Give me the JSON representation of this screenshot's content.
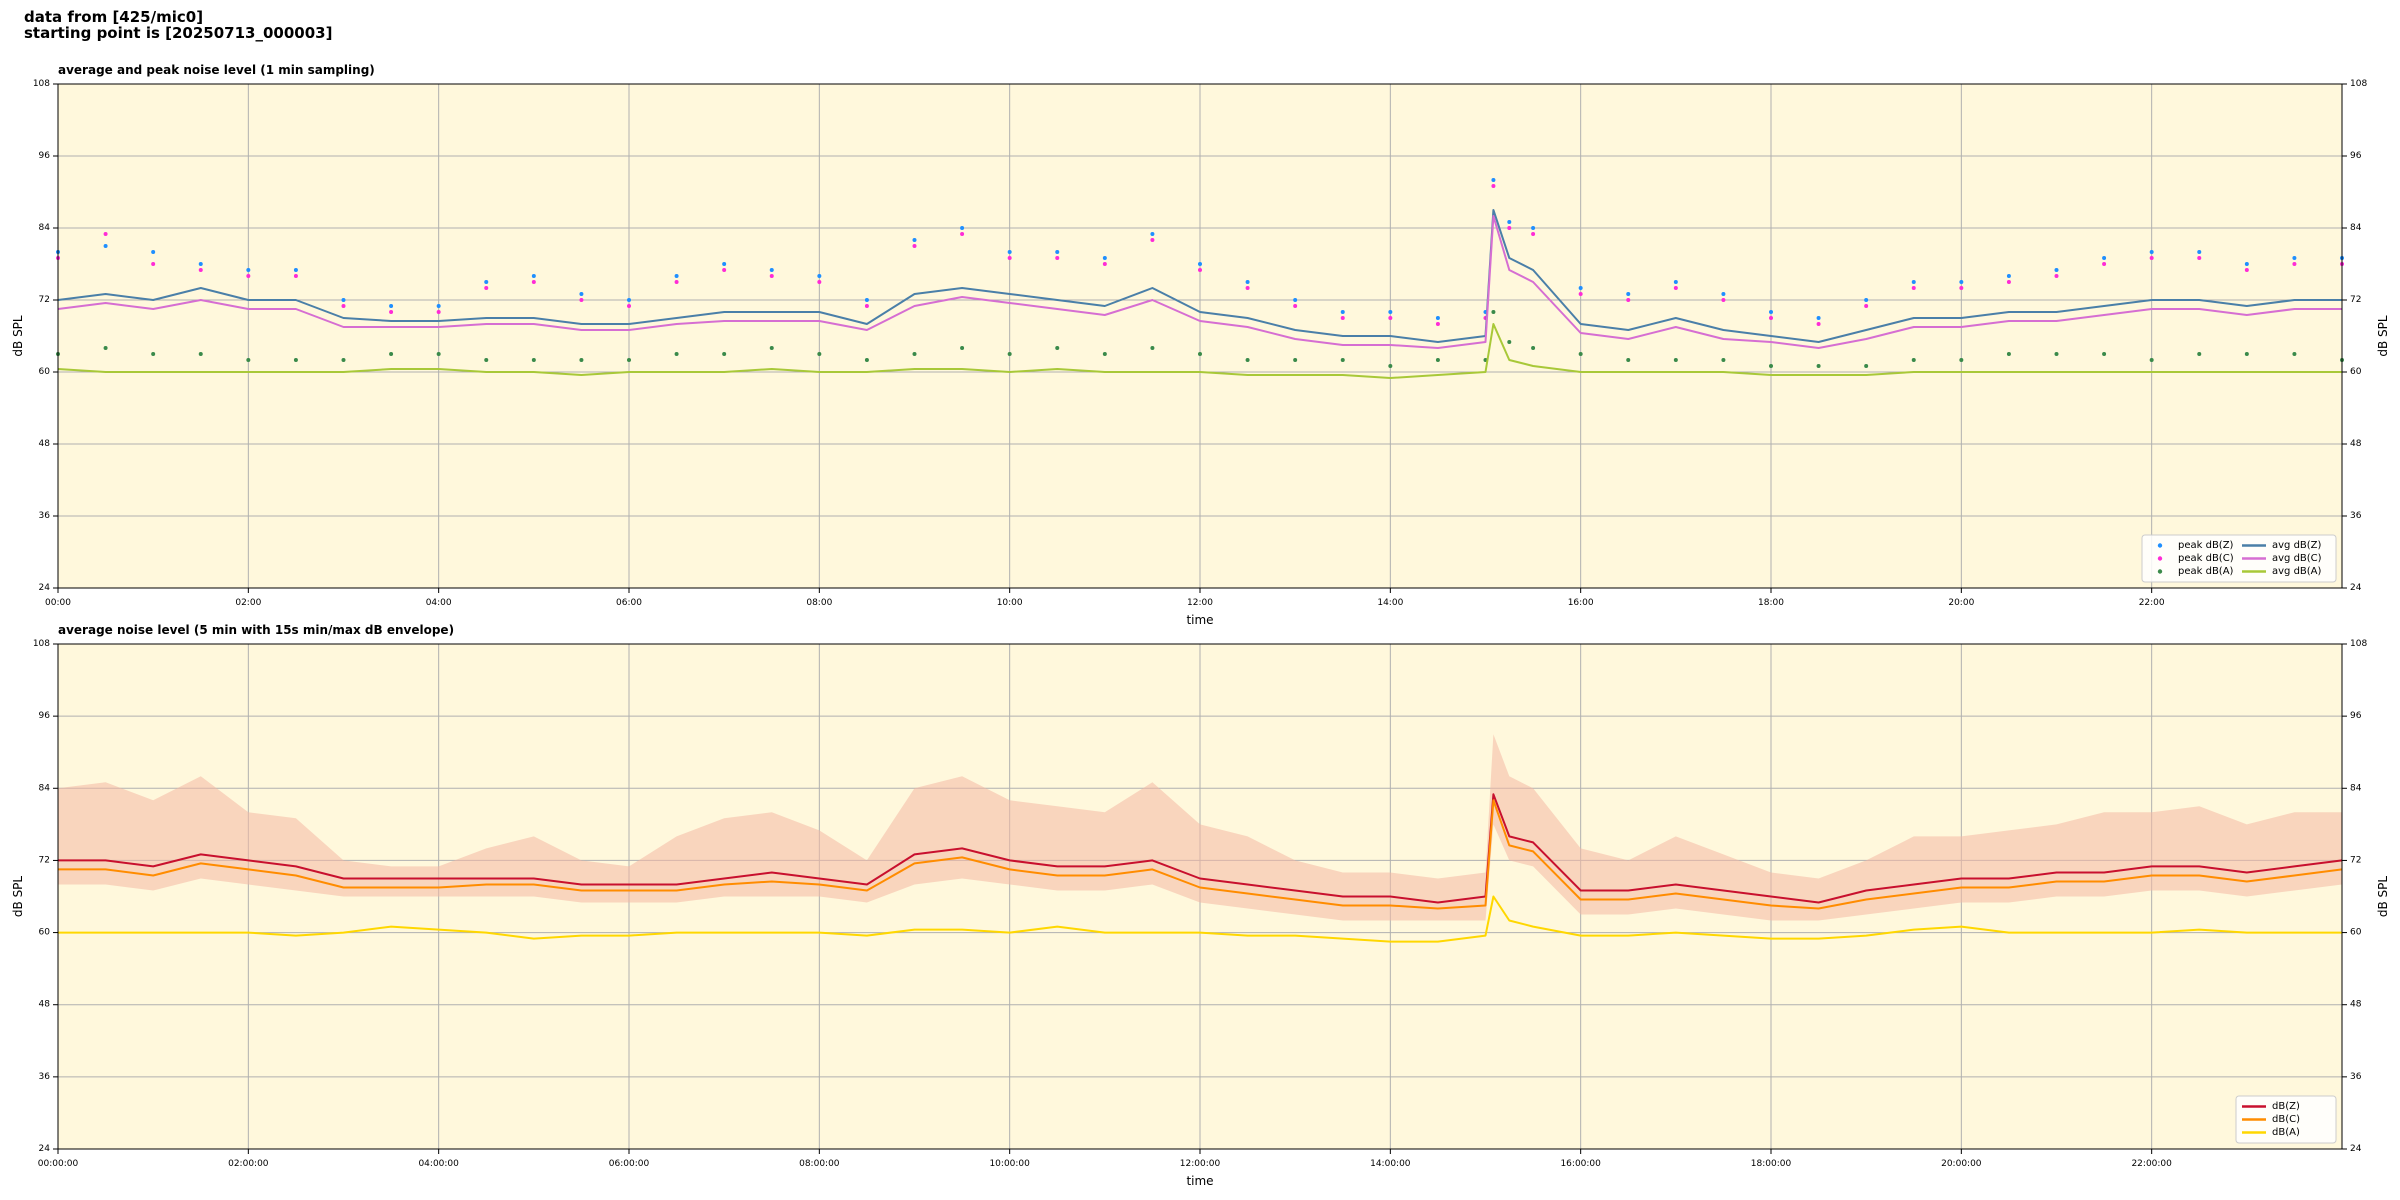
{
  "page_title": [
    "data from [425/mic0]",
    "starting point is [20250713_000003]"
  ],
  "chart_data": [
    {
      "type": "line",
      "title": "average and peak noise level (1 min sampling)",
      "xlabel": "time",
      "ylabel": "dB SPL",
      "background": "#fff8dc",
      "grid": true,
      "legend": "lower right",
      "legend_ncol": 2,
      "xlim": [
        0,
        1440
      ],
      "ylim": [
        24,
        108
      ],
      "yticks": [
        24,
        36,
        48,
        60,
        72,
        84,
        96,
        108
      ],
      "xticks": [
        {
          "value": 0,
          "label": "00:00"
        },
        {
          "value": 120,
          "label": "02:00"
        },
        {
          "value": 240,
          "label": "04:00"
        },
        {
          "value": 360,
          "label": "06:00"
        },
        {
          "value": 480,
          "label": "08:00"
        },
        {
          "value": 600,
          "label": "10:00"
        },
        {
          "value": 720,
          "label": "12:00"
        },
        {
          "value": 840,
          "label": "14:00"
        },
        {
          "value": 960,
          "label": "16:00"
        },
        {
          "value": 1080,
          "label": "18:00"
        },
        {
          "value": 1200,
          "label": "20:00"
        },
        {
          "value": 1320,
          "label": "22:00"
        }
      ],
      "x": [
        0,
        30,
        60,
        90,
        120,
        150,
        180,
        210,
        240,
        270,
        300,
        330,
        360,
        390,
        420,
        450,
        480,
        510,
        540,
        570,
        600,
        630,
        660,
        690,
        720,
        750,
        780,
        810,
        840,
        870,
        900,
        905,
        915,
        930,
        960,
        990,
        1020,
        1050,
        1080,
        1110,
        1140,
        1170,
        1200,
        1230,
        1260,
        1290,
        1320,
        1350,
        1380,
        1410,
        1440
      ],
      "series": [
        {
          "name": "peak dB(Z)",
          "style": "marker",
          "color": "#1f8fff",
          "values": [
            80,
            81,
            80,
            78,
            77,
            77,
            72,
            71,
            71,
            75,
            76,
            73,
            72,
            76,
            78,
            77,
            76,
            72,
            82,
            84,
            80,
            80,
            79,
            83,
            78,
            75,
            72,
            70,
            70,
            69,
            70,
            92,
            85,
            84,
            74,
            73,
            75,
            73,
            70,
            69,
            72,
            75,
            75,
            76,
            77,
            79,
            80,
            80,
            78,
            79,
            79
          ]
        },
        {
          "name": "peak dB(C)",
          "style": "marker",
          "color": "#ff2bd6",
          "values": [
            79,
            83,
            78,
            77,
            76,
            76,
            71,
            70,
            70,
            74,
            75,
            72,
            71,
            75,
            77,
            76,
            75,
            71,
            81,
            83,
            79,
            79,
            78,
            82,
            77,
            74,
            71,
            69,
            69,
            68,
            69,
            91,
            84,
            83,
            73,
            72,
            74,
            72,
            69,
            68,
            71,
            74,
            74,
            75,
            76,
            78,
            79,
            79,
            77,
            78,
            78
          ]
        },
        {
          "name": "peak dB(A)",
          "style": "marker",
          "color": "#3a8a4a",
          "values": [
            63,
            64,
            63,
            63,
            62,
            62,
            62,
            63,
            63,
            62,
            62,
            62,
            62,
            63,
            63,
            64,
            63,
            62,
            63,
            64,
            63,
            64,
            63,
            64,
            63,
            62,
            62,
            62,
            61,
            62,
            62,
            70,
            65,
            64,
            63,
            62,
            62,
            62,
            61,
            61,
            61,
            62,
            62,
            63,
            63,
            63,
            62,
            63,
            63,
            63,
            62
          ]
        },
        {
          "name": "avg dB(Z)",
          "style": "line",
          "color": "#4a7fa8",
          "values": [
            72,
            73,
            72,
            74,
            72,
            72,
            69,
            68.5,
            68.5,
            69,
            69,
            68,
            68,
            69,
            70,
            70,
            70,
            68,
            73,
            74,
            73,
            72,
            71,
            74,
            70,
            69,
            67,
            66,
            66,
            65,
            66,
            87,
            79,
            77,
            68,
            67,
            69,
            67,
            66,
            65,
            67,
            69,
            69,
            70,
            70,
            71,
            72,
            72,
            71,
            72,
            72
          ]
        },
        {
          "name": "avg dB(C)",
          "style": "line",
          "color": "#d66ed2",
          "values": [
            70.5,
            71.5,
            70.5,
            72,
            70.5,
            70.5,
            67.5,
            67.5,
            67.5,
            68,
            68,
            67,
            67,
            68,
            68.5,
            68.5,
            68.5,
            67,
            71,
            72.5,
            71.5,
            70.5,
            69.5,
            72,
            68.5,
            67.5,
            65.5,
            64.5,
            64.5,
            64,
            65,
            86,
            77,
            75,
            66.5,
            65.5,
            67.5,
            65.5,
            65,
            64,
            65.5,
            67.5,
            67.5,
            68.5,
            68.5,
            69.5,
            70.5,
            70.5,
            69.5,
            70.5,
            70.5
          ]
        },
        {
          "name": "avg dB(A)",
          "style": "line",
          "color": "#a8c838",
          "values": [
            60.5,
            60,
            60,
            60,
            60,
            60,
            60,
            60.5,
            60.5,
            60,
            60,
            59.5,
            60,
            60,
            60,
            60.5,
            60,
            60,
            60.5,
            60.5,
            60,
            60.5,
            60,
            60,
            60,
            59.5,
            59.5,
            59.5,
            59,
            59.5,
            60,
            68,
            62,
            61,
            60,
            60,
            60,
            60,
            59.5,
            59.5,
            59.5,
            60,
            60,
            60,
            60,
            60,
            60,
            60,
            60,
            60,
            60
          ]
        }
      ]
    },
    {
      "type": "line",
      "title": "average noise level (5 min with 15s min/max dB envelope)",
      "xlabel": "time",
      "ylabel": "dB SPL",
      "background": "#fff8dc",
      "grid": true,
      "legend": "lower right",
      "legend_ncol": 1,
      "xlim": [
        0,
        1440
      ],
      "ylim": [
        24,
        108
      ],
      "yticks": [
        24,
        36,
        48,
        60,
        72,
        84,
        96,
        108
      ],
      "xticks": [
        {
          "value": 0,
          "label": "00:00:00"
        },
        {
          "value": 120,
          "label": "02:00:00"
        },
        {
          "value": 240,
          "label": "04:00:00"
        },
        {
          "value": 360,
          "label": "06:00:00"
        },
        {
          "value": 480,
          "label": "08:00:00"
        },
        {
          "value": 600,
          "label": "10:00:00"
        },
        {
          "value": 720,
          "label": "12:00:00"
        },
        {
          "value": 840,
          "label": "14:00:00"
        },
        {
          "value": 960,
          "label": "16:00:00"
        },
        {
          "value": 1080,
          "label": "18:00:00"
        },
        {
          "value": 1200,
          "label": "20:00:00"
        },
        {
          "value": 1320,
          "label": "22:00:00"
        }
      ],
      "x": [
        0,
        30,
        60,
        90,
        120,
        150,
        180,
        210,
        240,
        270,
        300,
        330,
        360,
        390,
        420,
        450,
        480,
        510,
        540,
        570,
        600,
        630,
        660,
        690,
        720,
        750,
        780,
        810,
        840,
        870,
        900,
        905,
        915,
        930,
        960,
        990,
        1020,
        1050,
        1080,
        1110,
        1140,
        1170,
        1200,
        1230,
        1260,
        1290,
        1320,
        1350,
        1380,
        1410,
        1440
      ],
      "band": {
        "color": "#f4b8a4",
        "lower": [
          68,
          68,
          67,
          69,
          68,
          67,
          66,
          66,
          66,
          66,
          66,
          65,
          65,
          65,
          66,
          66,
          66,
          65,
          68,
          69,
          68,
          67,
          67,
          68,
          65,
          64,
          63,
          62,
          62,
          62,
          62,
          78,
          72,
          71,
          63,
          63,
          64,
          63,
          62,
          62,
          63,
          64,
          65,
          65,
          66,
          66,
          67,
          67,
          66,
          67,
          68
        ],
        "upper": [
          84,
          85,
          82,
          86,
          80,
          79,
          72,
          71,
          71,
          74,
          76,
          72,
          71,
          76,
          79,
          80,
          77,
          72,
          84,
          86,
          82,
          81,
          80,
          85,
          78,
          76,
          72,
          70,
          70,
          69,
          70,
          93,
          86,
          84,
          74,
          72,
          76,
          73,
          70,
          69,
          72,
          76,
          76,
          77,
          78,
          80,
          80,
          81,
          78,
          80,
          80
        ]
      },
      "series": [
        {
          "name": "dB(Z)",
          "style": "line",
          "color": "#c8102e",
          "values": [
            72,
            72,
            71,
            73,
            72,
            71,
            69,
            69,
            69,
            69,
            69,
            68,
            68,
            68,
            69,
            70,
            69,
            68,
            73,
            74,
            72,
            71,
            71,
            72,
            69,
            68,
            67,
            66,
            66,
            65,
            66,
            83,
            76,
            75,
            67,
            67,
            68,
            67,
            66,
            65,
            67,
            68,
            69,
            69,
            70,
            70,
            71,
            71,
            70,
            71,
            72
          ]
        },
        {
          "name": "dB(C)",
          "style": "line",
          "color": "#ff8c00",
          "values": [
            70.5,
            70.5,
            69.5,
            71.5,
            70.5,
            69.5,
            67.5,
            67.5,
            67.5,
            68,
            68,
            67,
            67,
            67,
            68,
            68.5,
            68,
            67,
            71.5,
            72.5,
            70.5,
            69.5,
            69.5,
            70.5,
            67.5,
            66.5,
            65.5,
            64.5,
            64.5,
            64,
            64.5,
            82,
            74.5,
            73.5,
            65.5,
            65.5,
            66.5,
            65.5,
            64.5,
            64,
            65.5,
            66.5,
            67.5,
            67.5,
            68.5,
            68.5,
            69.5,
            69.5,
            68.5,
            69.5,
            70.5
          ]
        },
        {
          "name": "dB(A)",
          "style": "line",
          "color": "#ffd700",
          "values": [
            60,
            60,
            60,
            60,
            60,
            59.5,
            60,
            61,
            60.5,
            60,
            59,
            59.5,
            59.5,
            60,
            60,
            60,
            60,
            59.5,
            60.5,
            60.5,
            60,
            61,
            60,
            60,
            60,
            59.5,
            59.5,
            59,
            58.5,
            58.5,
            59.5,
            66,
            62,
            61,
            59.5,
            59.5,
            60,
            59.5,
            59,
            59,
            59.5,
            60.5,
            61,
            60,
            60,
            60,
            60,
            60.5,
            60,
            60,
            60
          ]
        }
      ]
    }
  ]
}
